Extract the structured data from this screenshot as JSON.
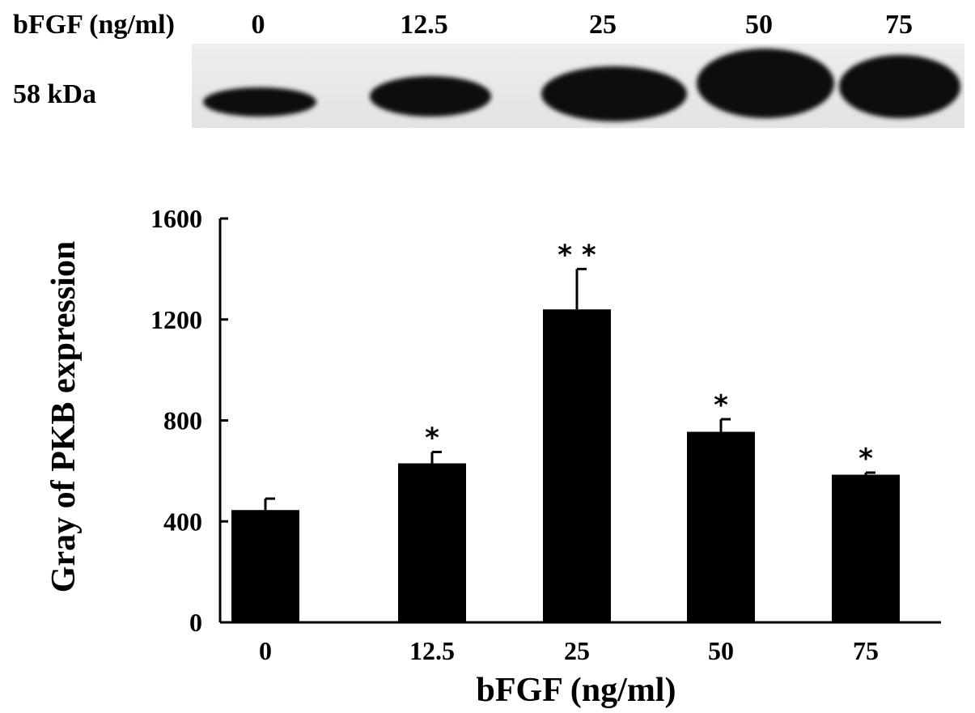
{
  "blot": {
    "header_label": "bFGF (ng/ml)",
    "molecular_weight": "58 kDa",
    "lanes": [
      "0",
      "12.5",
      "25",
      "50",
      "75"
    ],
    "band_intensity": [
      0.45,
      0.63,
      1.0,
      1.0,
      0.9
    ]
  },
  "chart_data": {
    "type": "bar",
    "categories": [
      "0",
      "12.5",
      "25",
      "50",
      "75"
    ],
    "values": [
      445,
      630,
      1240,
      755,
      585
    ],
    "errors": [
      45,
      45,
      160,
      50,
      8
    ],
    "significance": [
      "",
      "*",
      "* *",
      "*",
      "*"
    ],
    "title": "",
    "xlabel": "bFGF (ng/ml)",
    "ylabel": "Gray of PKB expression",
    "ylim": [
      0,
      1600
    ],
    "yticks": [
      0,
      400,
      800,
      1200,
      1600
    ],
    "grid": false,
    "legend": "none",
    "bar_color": "#000000"
  }
}
